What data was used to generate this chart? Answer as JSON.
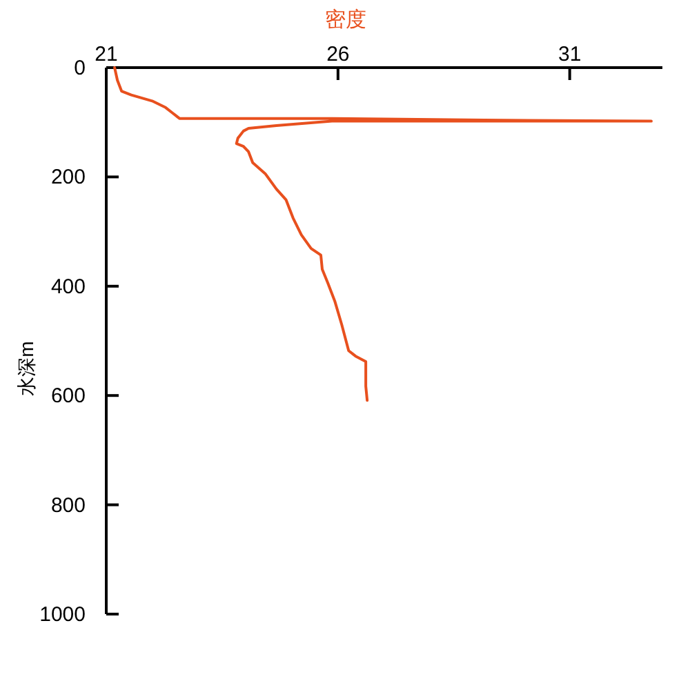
{
  "chart_data": {
    "type": "line",
    "xlabel": "密度",
    "ylabel": "水深m",
    "xlim": [
      21,
      33
    ],
    "ylim": [
      1000,
      0
    ],
    "xticks": [
      21,
      26,
      31
    ],
    "yticks": [
      0,
      200,
      400,
      600,
      800,
      1000
    ],
    "grid": false,
    "marker": "none",
    "line_style": "solid",
    "series": [
      {
        "color": "#e8501e",
        "x": [
          21.18,
          21.24,
          21.33,
          21.54,
          21.99,
          22.28,
          22.43,
          22.58,
          25.87,
          29.15,
          32.76,
          25.87,
          24.67,
          24.07,
          23.96,
          23.84,
          23.81,
          23.96,
          24.07,
          24.16,
          24.43,
          24.67,
          24.88,
          25.03,
          25.21,
          25.42,
          25.63,
          25.66,
          25.78,
          25.93,
          26.08,
          26.23,
          26.38,
          26.6,
          26.6,
          26.63
        ],
        "values": [
          0,
          23,
          43,
          50,
          61,
          73,
          83,
          93,
          93,
          96,
          98,
          98,
          106,
          111,
          116,
          129,
          139,
          144,
          154,
          174,
          194,
          222,
          242,
          275,
          306,
          331,
          343,
          369,
          394,
          427,
          470,
          518,
          528,
          538,
          583,
          609
        ]
      }
    ]
  }
}
